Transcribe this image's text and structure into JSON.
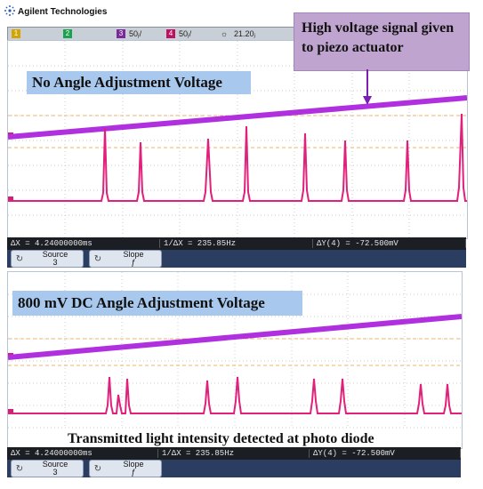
{
  "header": {
    "brand": "Agilent Technologies"
  },
  "status_bar": {
    "ch1": "1",
    "ch2": "2",
    "ch3": "3",
    "ch4": "4",
    "ch3_scale": "50ⱼ/",
    "ch4_scale": "50ⱼ/",
    "timebase": "21.20ⱼ"
  },
  "annotations": {
    "hv_signal": "High voltage signal given to piezo actuator",
    "no_angle": "No Angle Adjustment Voltage",
    "dc_angle": "800 mV DC Angle Adjustment Voltage",
    "transmitted": "Transmitted light intensity detected at photo diode"
  },
  "panel_top": {
    "delta_x": "ΔX = 4.24000000ms",
    "inv_delta_x": "1/ΔX = 235.85Hz",
    "delta_y": "ΔY(4) = -72.500mV",
    "source_label": "Source",
    "source_value": "3",
    "slope_label": "Slope",
    "slope_value": "ƒ"
  },
  "panel_bottom": {
    "delta_x": "ΔX = 4.24000000ms",
    "inv_delta_x": "1/ΔX = 235.85Hz",
    "delta_y": "ΔY(4) = -72.500mV",
    "source_label": "Source",
    "source_value": "3",
    "slope_label": "Slope",
    "slope_value": "ƒ"
  },
  "colors": {
    "ramp": "#b030e0",
    "pulse": "#e0207a",
    "label_bg": "#a8c8ee",
    "callout_bg": "#c0a4d0",
    "grid": "#cfcfcf",
    "cursor": "#f2b36b"
  },
  "icons": [
    "agilent-logo-icon",
    "sun-icon",
    "source-rotate-icon",
    "slope-rotate-icon",
    "arrow-down-icon"
  ]
}
